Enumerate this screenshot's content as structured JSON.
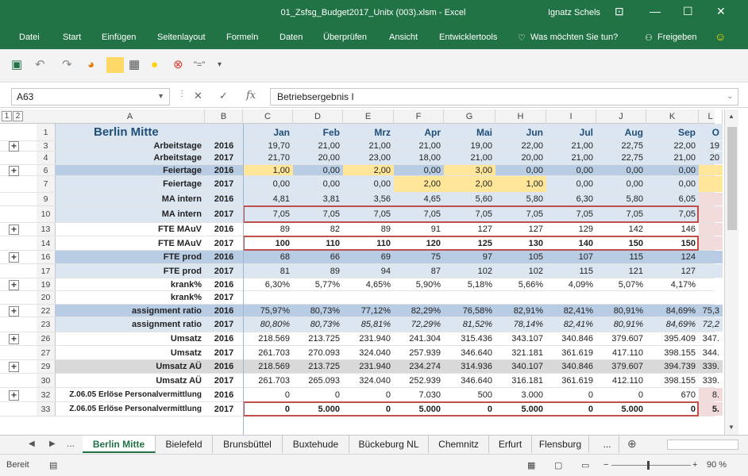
{
  "window": {
    "title": "01_Zsfsg_Budget2017_Unitx (003).xlsm  -  Excel",
    "user": "Ignatz Schels",
    "controls": [
      "⊡",
      "—",
      "☐",
      "✕"
    ]
  },
  "ribbon": {
    "tabs": [
      "Datei",
      "Start",
      "Einfügen",
      "Seitenlayout",
      "Formeln",
      "Daten",
      "Überprüfen",
      "Ansicht",
      "Entwicklertools"
    ],
    "tell_me": "Was möchten Sie tun?",
    "share": "Freigeben"
  },
  "formula_bar": {
    "name_box": "A63",
    "fx": "fx",
    "cancel": "✕",
    "confirm": "✓",
    "content": "Betriebsergebnis I"
  },
  "grid": {
    "levels": [
      "1",
      "2"
    ],
    "columns": [
      "A",
      "B",
      "C",
      "D",
      "E",
      "F",
      "G",
      "H",
      "I",
      "J",
      "K",
      "L"
    ],
    "header_row": {
      "rn": "1",
      "title": "Berlin Mitte",
      "months": [
        "Jan",
        "Feb",
        "Mrz",
        "Apr",
        "Mai",
        "Jun",
        "Jul",
        "Aug",
        "Sep",
        "O"
      ]
    },
    "rows": [
      {
        "rn": "3",
        "label": "Arbeitstage",
        "year": "2016",
        "values": [
          "19,70",
          "21,00",
          "21,00",
          "21,00",
          "19,00",
          "22,00",
          "21,00",
          "22,75",
          "22,00",
          "19"
        ]
      },
      {
        "rn": "4",
        "label": "Arbeitstage",
        "year": "2017",
        "values": [
          "21,70",
          "20,00",
          "23,00",
          "18,00",
          "21,00",
          "20,00",
          "21,00",
          "22,75",
          "21,00",
          "20"
        ]
      },
      {
        "rn": "6",
        "label": "Feiertage",
        "year": "2016",
        "values": [
          "1,00",
          "0,00",
          "2,00",
          "0,00",
          "3,00",
          "0,00",
          "0,00",
          "0,00",
          "0,00",
          ""
        ]
      },
      {
        "rn": "7",
        "label": "Feiertage",
        "year": "2017",
        "values": [
          "0,00",
          "0,00",
          "0,00",
          "2,00",
          "2,00",
          "1,00",
          "0,00",
          "0,00",
          "0,00",
          ""
        ]
      },
      {
        "rn": "9",
        "label": "MA intern",
        "year": "2016",
        "values": [
          "4,81",
          "3,81",
          "3,56",
          "4,65",
          "5,60",
          "5,80",
          "6,30",
          "5,80",
          "6,05",
          ""
        ]
      },
      {
        "rn": "10",
        "label": "MA intern",
        "year": "2017",
        "values": [
          "7,05",
          "7,05",
          "7,05",
          "7,05",
          "7,05",
          "7,05",
          "7,05",
          "7,05",
          "7,05",
          ""
        ]
      },
      {
        "rn": "13",
        "label": "FTE MAuV",
        "year": "2016",
        "values": [
          "89",
          "82",
          "89",
          "91",
          "127",
          "127",
          "129",
          "142",
          "146",
          ""
        ]
      },
      {
        "rn": "14",
        "label": "FTE MAuV",
        "year": "2017",
        "values": [
          "100",
          "110",
          "110",
          "120",
          "125",
          "130",
          "140",
          "150",
          "150",
          ""
        ]
      },
      {
        "rn": "16",
        "label": "FTE prod",
        "year": "2016",
        "values": [
          "68",
          "66",
          "69",
          "75",
          "97",
          "105",
          "107",
          "115",
          "124",
          ""
        ]
      },
      {
        "rn": "17",
        "label": "FTE prod",
        "year": "2017",
        "values": [
          "81",
          "89",
          "94",
          "87",
          "102",
          "102",
          "115",
          "121",
          "127",
          ""
        ]
      },
      {
        "rn": "19",
        "label": "krank%",
        "year": "2016",
        "values": [
          "6,30%",
          "5,77%",
          "4,65%",
          "5,90%",
          "5,18%",
          "5,66%",
          "4,09%",
          "5,07%",
          "4,17%",
          ""
        ]
      },
      {
        "rn": "20",
        "label": "krank%",
        "year": "2017",
        "values": [
          "",
          "",
          "",
          "",
          "",
          "",
          "",
          "",
          "",
          ""
        ]
      },
      {
        "rn": "22",
        "label": "assignment ratio",
        "year": "2016",
        "values": [
          "75,97%",
          "80,73%",
          "77,12%",
          "82,29%",
          "76,58%",
          "82,91%",
          "82,41%",
          "80,91%",
          "84,69%",
          "75,3"
        ]
      },
      {
        "rn": "23",
        "label": "assignment ratio",
        "year": "2017",
        "values": [
          "80,80%",
          "80,73%",
          "85,81%",
          "72,29%",
          "81,52%",
          "78,14%",
          "82,41%",
          "80,91%",
          "84,69%",
          "72,2"
        ]
      },
      {
        "rn": "26",
        "label": "Umsatz",
        "year": "2016",
        "values": [
          "218.569",
          "213.725",
          "231.940",
          "241.304",
          "315.436",
          "343.107",
          "340.846",
          "379.607",
          "395.409",
          "347."
        ]
      },
      {
        "rn": "27",
        "label": "Umsatz",
        "year": "2017",
        "values": [
          "261.703",
          "270.093",
          "324.040",
          "257.939",
          "346.640",
          "321.181",
          "361.619",
          "417.110",
          "398.155",
          "344."
        ]
      },
      {
        "rn": "29",
        "label": "Umsatz AÜ",
        "year": "2016",
        "values": [
          "218.569",
          "213.725",
          "231.940",
          "234.274",
          "314.936",
          "340.107",
          "340.846",
          "379.607",
          "394.739",
          "339."
        ]
      },
      {
        "rn": "30",
        "label": "Umsatz AÜ",
        "year": "2017",
        "values": [
          "261.703",
          "265.093",
          "324.040",
          "252.939",
          "346.640",
          "316.181",
          "361.619",
          "412.110",
          "398.155",
          "339."
        ]
      },
      {
        "rn": "32",
        "label": "Z.06.05 Erlöse Personalvermittlung",
        "year": "2016",
        "values": [
          "0",
          "0",
          "0",
          "7.030",
          "500",
          "3.000",
          "0",
          "0",
          "670",
          "8."
        ]
      },
      {
        "rn": "33",
        "label": "Z.06.05 Erlöse Personalvermittlung",
        "year": "2017",
        "values": [
          "0",
          "5.000",
          "0",
          "5.000",
          "0",
          "5.000",
          "0",
          "5.000",
          "0",
          "5."
        ]
      }
    ]
  },
  "sheet_tabs": {
    "more": "...",
    "tabs": [
      "Berlin Mitte",
      "Bielefeld",
      "Brunsbüttel",
      "Buxtehude",
      "Bückeburg NL",
      "Chemnitz",
      "Erfurt",
      "Flensburg"
    ],
    "active": "Berlin Mitte",
    "more_right": "...",
    "add": "⊕"
  },
  "status_bar": {
    "state": "Bereit",
    "zoom": "90 %",
    "minus": "−",
    "plus": "+"
  }
}
